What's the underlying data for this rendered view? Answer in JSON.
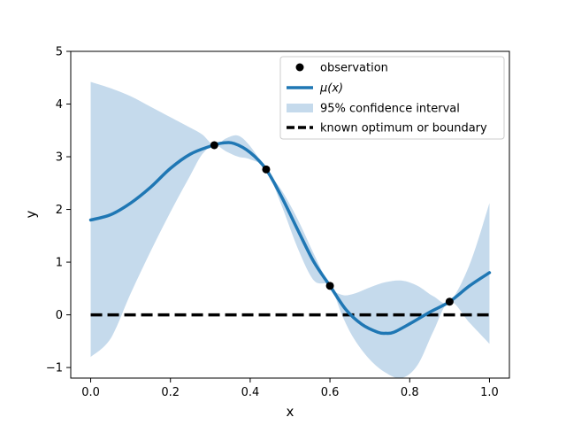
{
  "chart_data": {
    "type": "line",
    "title": "",
    "xlabel": "x",
    "ylabel": "y",
    "xlim": [
      -0.05,
      1.05
    ],
    "ylim": [
      -1.2,
      5.0
    ],
    "xticks": [
      0.0,
      0.2,
      0.4,
      0.6,
      0.8,
      1.0
    ],
    "xtick_labels": [
      "0.0",
      "0.2",
      "0.4",
      "0.6",
      "0.8",
      "1.0"
    ],
    "yticks": [
      -1,
      0,
      1,
      2,
      3,
      4,
      5
    ],
    "ytick_labels": [
      "−1",
      "0",
      "1",
      "2",
      "3",
      "4",
      "5"
    ],
    "grid": false,
    "legend_position": "upper right",
    "legend": [
      {
        "key": "observation",
        "label": "observation",
        "style": "marker"
      },
      {
        "key": "mean",
        "label": "μ(x)",
        "style": "line"
      },
      {
        "key": "ci",
        "label": "95% confidence interval",
        "style": "patch"
      },
      {
        "key": "boundary",
        "label": "known optimum or boundary",
        "style": "dashed"
      }
    ],
    "colors": {
      "mean": "#1f77b4",
      "ci": "#c5daec",
      "observation": "#000000",
      "boundary": "#000000"
    },
    "observations": {
      "x": [
        0.31,
        0.44,
        0.6,
        0.9
      ],
      "y": [
        3.22,
        2.76,
        0.55,
        0.25
      ]
    },
    "mean": {
      "x": [
        0.0,
        0.05,
        0.1,
        0.15,
        0.2,
        0.25,
        0.3,
        0.33,
        0.36,
        0.4,
        0.44,
        0.48,
        0.52,
        0.56,
        0.6,
        0.64,
        0.68,
        0.72,
        0.74,
        0.76,
        0.8,
        0.85,
        0.9,
        0.95,
        1.0
      ],
      "y": [
        1.8,
        1.9,
        2.12,
        2.42,
        2.78,
        3.05,
        3.2,
        3.26,
        3.25,
        3.08,
        2.76,
        2.22,
        1.6,
        1.0,
        0.55,
        0.1,
        -0.18,
        -0.33,
        -0.35,
        -0.33,
        -0.17,
        0.05,
        0.25,
        0.55,
        0.8
      ]
    },
    "confidence_interval": {
      "x": [
        0.0,
        0.05,
        0.1,
        0.15,
        0.2,
        0.25,
        0.28,
        0.31,
        0.34,
        0.37,
        0.4,
        0.44,
        0.48,
        0.52,
        0.56,
        0.6,
        0.63,
        0.66,
        0.7,
        0.74,
        0.78,
        0.82,
        0.86,
        0.9,
        0.95,
        1.0
      ],
      "lower": [
        -0.8,
        -0.45,
        0.4,
        1.2,
        1.95,
        2.65,
        3.05,
        3.22,
        3.1,
        3.0,
        2.95,
        2.76,
        2.05,
        1.25,
        0.65,
        0.55,
        0.0,
        -0.45,
        -0.85,
        -1.1,
        -1.2,
        -0.95,
        -0.3,
        0.25,
        -0.15,
        -0.55
      ],
      "upper": [
        4.42,
        4.3,
        4.15,
        3.95,
        3.75,
        3.55,
        3.42,
        3.22,
        3.35,
        3.4,
        3.2,
        2.76,
        2.35,
        1.8,
        1.15,
        0.55,
        0.38,
        0.4,
        0.52,
        0.62,
        0.65,
        0.55,
        0.35,
        0.25,
        0.95,
        2.12
      ]
    },
    "boundary": {
      "x": [
        0.0,
        1.0
      ],
      "y": [
        0.0,
        0.0
      ]
    }
  }
}
